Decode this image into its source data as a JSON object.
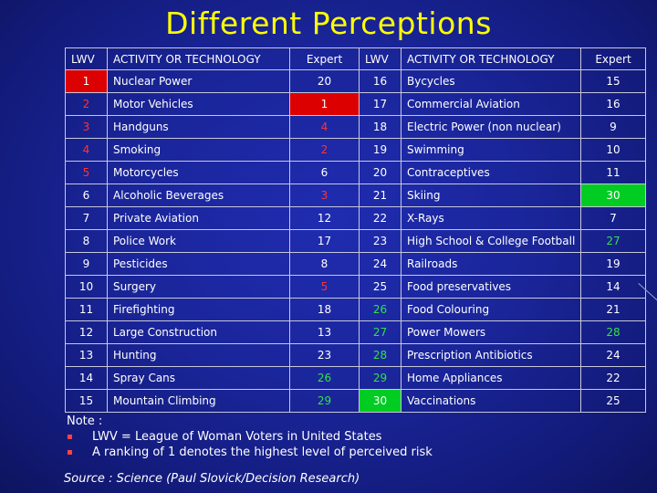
{
  "title": "Different Perceptions",
  "table": {
    "headers": [
      "LWV",
      "ACTIVITY OR TECHNOLOGY",
      "Expert",
      "LWV",
      "ACTIVITY OR TECHNOLOGY",
      "Expert"
    ],
    "rows": [
      [
        {
          "t": "1",
          "c": "hl-red"
        },
        {
          "t": "Nuclear Power"
        },
        {
          "t": "20"
        },
        {
          "t": "16"
        },
        {
          "t": "Bycycles"
        },
        {
          "t": "15"
        }
      ],
      [
        {
          "t": "2",
          "c": "red"
        },
        {
          "t": "Motor Vehicles"
        },
        {
          "t": "1",
          "c": "hl-red"
        },
        {
          "t": "17"
        },
        {
          "t": "Commercial Aviation"
        },
        {
          "t": "16"
        }
      ],
      [
        {
          "t": "3",
          "c": "red"
        },
        {
          "t": "Handguns"
        },
        {
          "t": "4",
          "c": "red"
        },
        {
          "t": "18"
        },
        {
          "t": "Electric Power (non nuclear)"
        },
        {
          "t": "9"
        }
      ],
      [
        {
          "t": "4",
          "c": "red"
        },
        {
          "t": "Smoking"
        },
        {
          "t": "2",
          "c": "red"
        },
        {
          "t": "19"
        },
        {
          "t": "Swimming"
        },
        {
          "t": "10"
        }
      ],
      [
        {
          "t": "5",
          "c": "red"
        },
        {
          "t": "Motorcycles"
        },
        {
          "t": "6"
        },
        {
          "t": "20"
        },
        {
          "t": "Contraceptives"
        },
        {
          "t": "11"
        }
      ],
      [
        {
          "t": "6"
        },
        {
          "t": "Alcoholic Beverages"
        },
        {
          "t": "3",
          "c": "red"
        },
        {
          "t": "21"
        },
        {
          "t": "Skiing"
        },
        {
          "t": "30",
          "c": "hl-green"
        }
      ],
      [
        {
          "t": "7"
        },
        {
          "t": "Private Aviation"
        },
        {
          "t": "12"
        },
        {
          "t": "22"
        },
        {
          "t": "X-Rays"
        },
        {
          "t": "7"
        }
      ],
      [
        {
          "t": "8"
        },
        {
          "t": "Police Work"
        },
        {
          "t": "17"
        },
        {
          "t": "23"
        },
        {
          "t": "High School & College Football"
        },
        {
          "t": "27",
          "c": "green"
        }
      ],
      [
        {
          "t": "9"
        },
        {
          "t": "Pesticides"
        },
        {
          "t": "8"
        },
        {
          "t": "24"
        },
        {
          "t": "Railroads"
        },
        {
          "t": "19"
        }
      ],
      [
        {
          "t": "10"
        },
        {
          "t": "Surgery"
        },
        {
          "t": "5",
          "c": "red"
        },
        {
          "t": "25"
        },
        {
          "t": "Food preservatives"
        },
        {
          "t": "14"
        }
      ],
      [
        {
          "t": "11"
        },
        {
          "t": "Firefighting"
        },
        {
          "t": "18"
        },
        {
          "t": "26",
          "c": "green"
        },
        {
          "t": "Food Colouring"
        },
        {
          "t": "21"
        }
      ],
      [
        {
          "t": "12"
        },
        {
          "t": "Large Construction"
        },
        {
          "t": "13"
        },
        {
          "t": "27",
          "c": "green"
        },
        {
          "t": "Power Mowers"
        },
        {
          "t": "28",
          "c": "green"
        }
      ],
      [
        {
          "t": "13"
        },
        {
          "t": "Hunting"
        },
        {
          "t": "23"
        },
        {
          "t": "28",
          "c": "green"
        },
        {
          "t": "Prescription Antibiotics"
        },
        {
          "t": "24"
        }
      ],
      [
        {
          "t": "14"
        },
        {
          "t": "Spray Cans"
        },
        {
          "t": "26",
          "c": "green"
        },
        {
          "t": "29",
          "c": "green"
        },
        {
          "t": "Home Appliances"
        },
        {
          "t": "22"
        }
      ],
      [
        {
          "t": "15"
        },
        {
          "t": "Mountain Climbing"
        },
        {
          "t": "29",
          "c": "green"
        },
        {
          "t": "30",
          "c": "hl-green"
        },
        {
          "t": "Vaccinations"
        },
        {
          "t": "25"
        }
      ]
    ]
  },
  "note": {
    "heading": "Note :",
    "items": [
      "LWV = League of Woman Voters in United States",
      "A ranking of 1 denotes the highest level of perceived risk"
    ],
    "bullet": "▪"
  },
  "source": "Source : Science (Paul Slovick/Decision Research)",
  "colors": {
    "title": "#ffff00",
    "red_text": "#ff3333",
    "green_text": "#33e04a",
    "red_highlight": "#dd0000",
    "green_highlight": "#00cc22"
  }
}
